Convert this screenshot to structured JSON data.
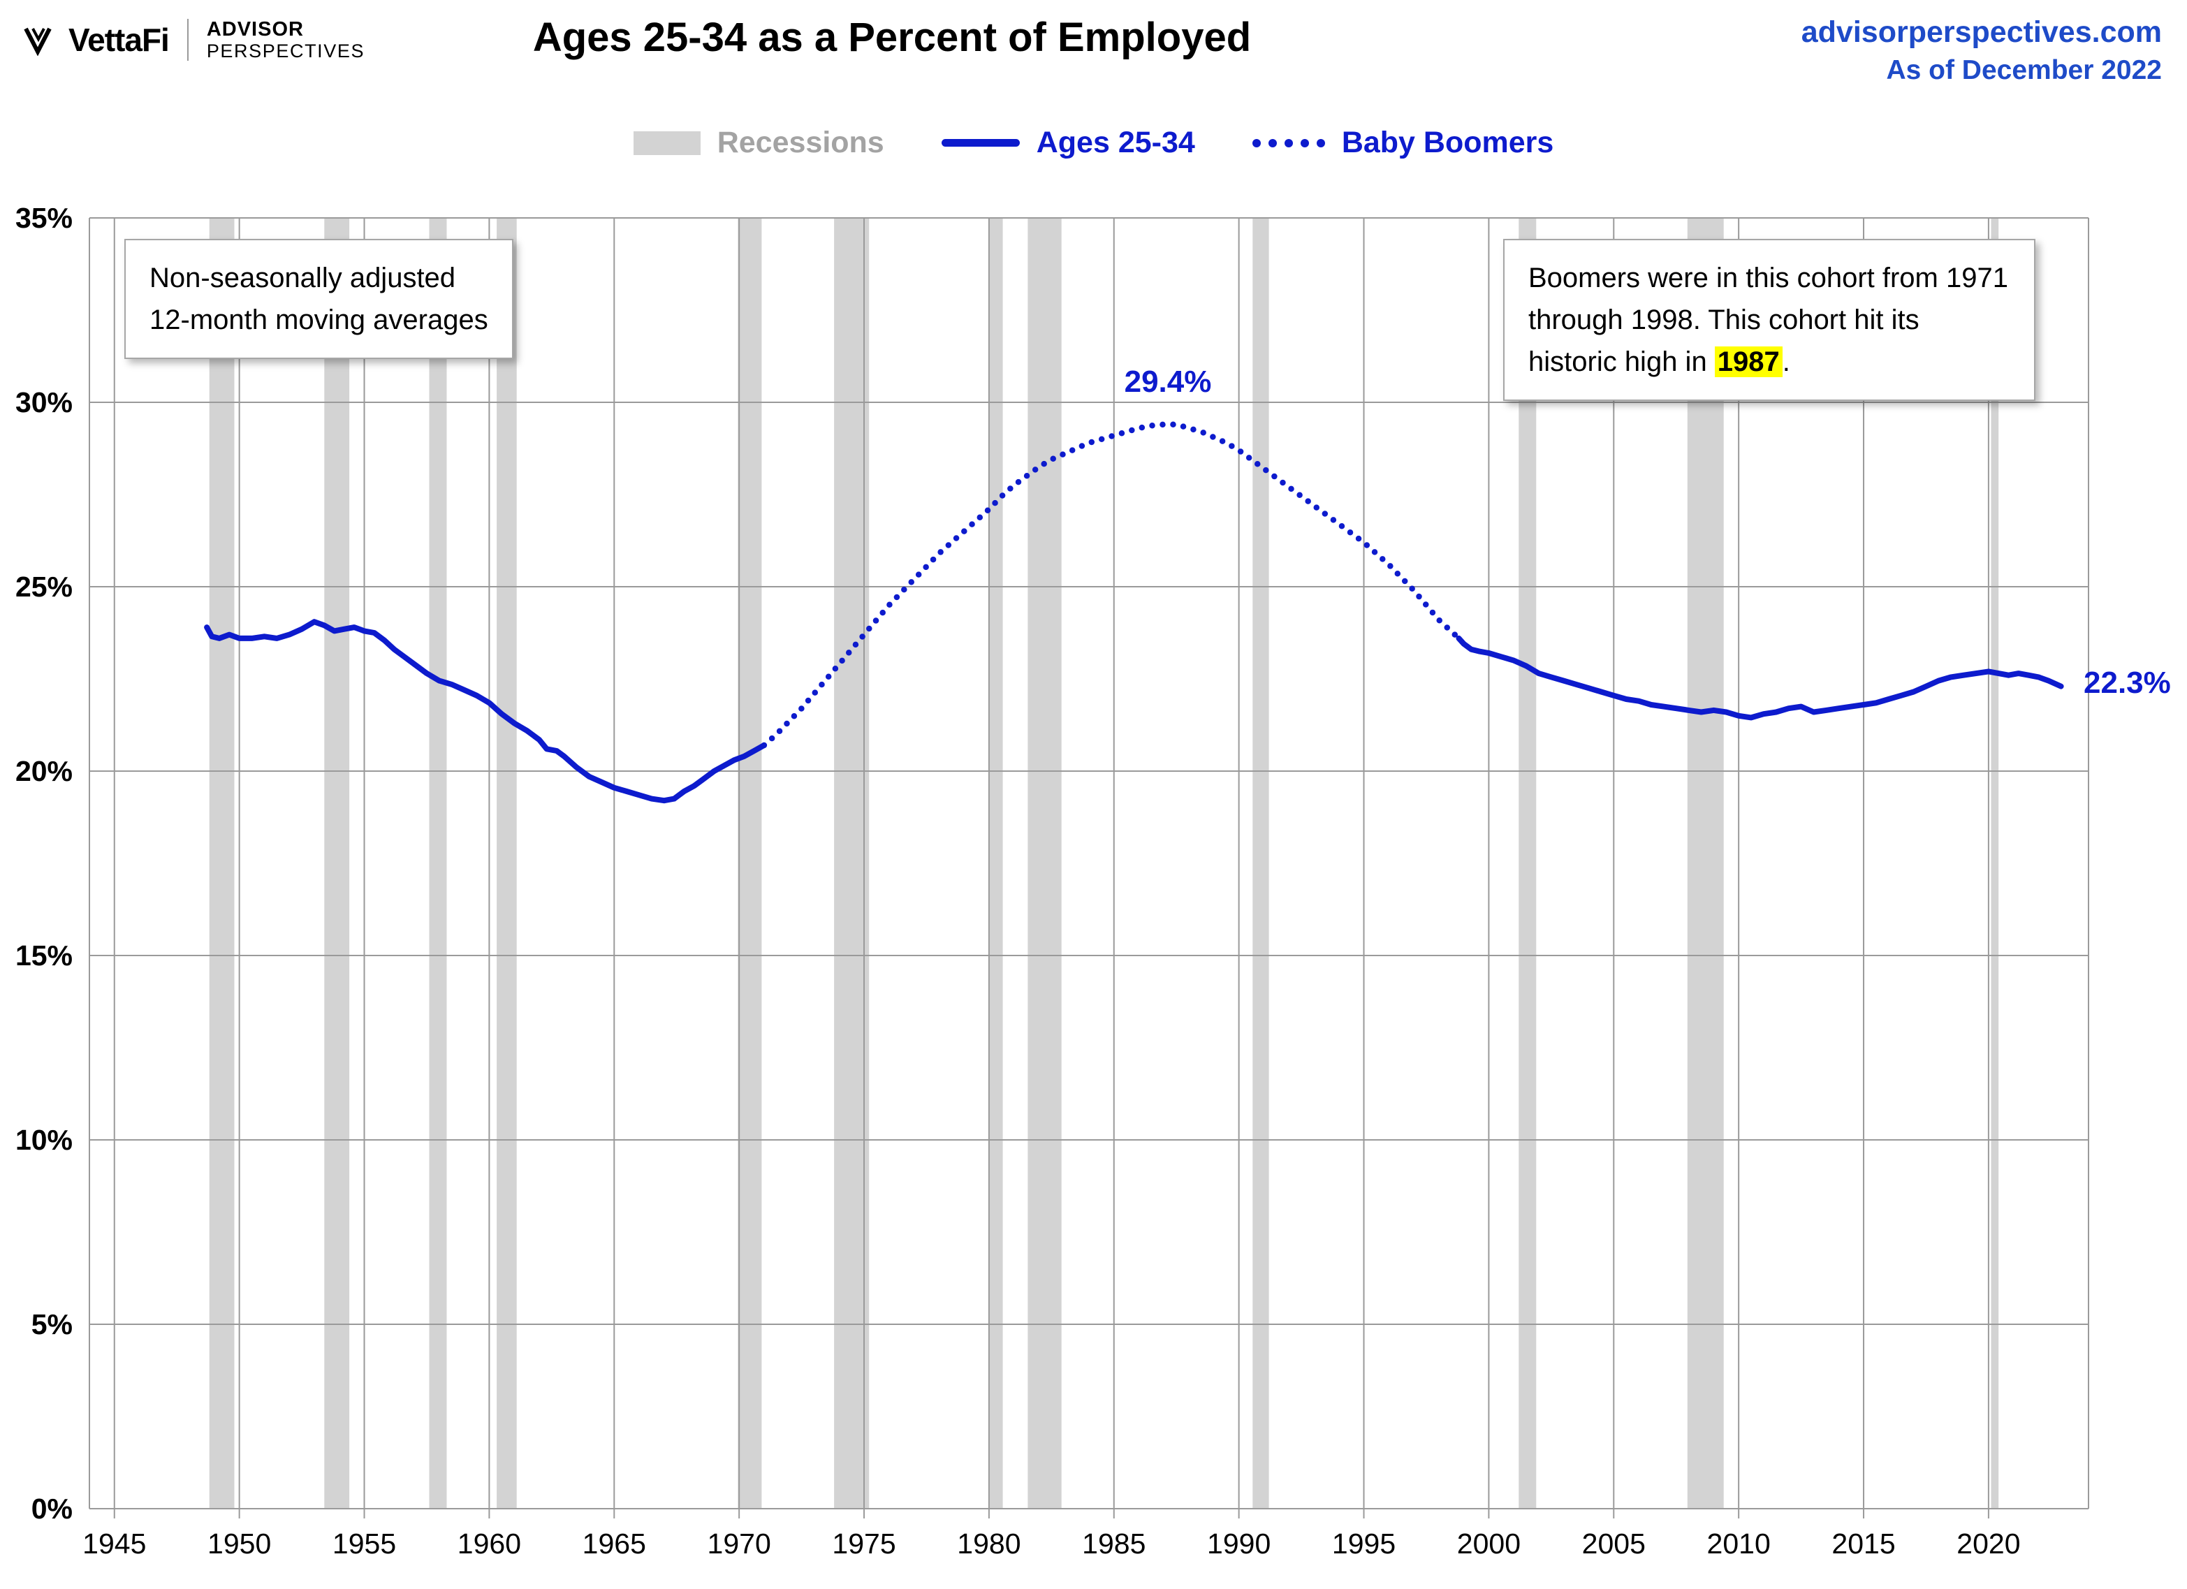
{
  "header": {
    "brand_name": "VettaFi",
    "brand_top": "ADVISOR",
    "brand_bottom": "PERSPECTIVES",
    "title": "Ages 25-34 as a Percent of Employed",
    "site": "advisorperspectives.com",
    "as_of": "As of December 2022"
  },
  "legend": {
    "recessions": "Recessions",
    "ages": "Ages 25-34",
    "boomers": "Baby Boomers"
  },
  "notes": {
    "left_line1": "Non-seasonally adjusted",
    "left_line2": "12-month moving averages",
    "right_before": "Boomers were in this cohort from 1971 through 1998. This cohort hit its historic high in ",
    "right_highlight": "1987",
    "right_after": "."
  },
  "annotations": {
    "peak_label": "29.4%",
    "latest_label": "22.3%"
  },
  "colors": {
    "line": "#0d1bcd",
    "header_blue": "#1e4bc8",
    "recession": "#d3d3d3",
    "grid": "#9a9a9a",
    "legend_gray": "#a3a3a3",
    "highlight": "#ffff00"
  },
  "chart_data": {
    "type": "line",
    "title": "Ages 25-34 as a Percent of Employed",
    "xlabel": "",
    "ylabel": "",
    "xlim": [
      1944,
      2024
    ],
    "ylim": [
      0,
      35
    ],
    "grid": true,
    "legend_position": "top",
    "x_ticks": [
      1945,
      1950,
      1955,
      1960,
      1965,
      1970,
      1975,
      1980,
      1985,
      1990,
      1995,
      2000,
      2005,
      2010,
      2015,
      2020
    ],
    "y_ticks": [
      {
        "v": 0,
        "label": "0%"
      },
      {
        "v": 5,
        "label": "5%"
      },
      {
        "v": 10,
        "label": "10%"
      },
      {
        "v": 15,
        "label": "15%"
      },
      {
        "v": 20,
        "label": "20%"
      },
      {
        "v": 25,
        "label": "25%"
      },
      {
        "v": 30,
        "label": "30%"
      },
      {
        "v": 35,
        "label": "35%"
      }
    ],
    "recessions": [
      [
        1948.8,
        1949.8
      ],
      [
        1953.4,
        1954.4
      ],
      [
        1957.6,
        1958.3
      ],
      [
        1960.3,
        1961.1
      ],
      [
        1969.95,
        1970.9
      ],
      [
        1973.8,
        1975.2
      ],
      [
        1980.0,
        1980.55
      ],
      [
        1981.55,
        1982.9
      ],
      [
        1990.55,
        1991.2
      ],
      [
        2001.2,
        2001.9
      ],
      [
        2007.95,
        2009.4
      ],
      [
        2020.1,
        2020.4
      ]
    ],
    "series": [
      {
        "name": "Ages 25-34",
        "style": "solid",
        "x": [
          1948.7,
          1948.9,
          1949.2,
          1949.6,
          1950,
          1950.5,
          1951,
          1951.5,
          1952,
          1952.5,
          1953,
          1953.4,
          1953.8,
          1954.2,
          1954.6,
          1955,
          1955.4,
          1955.8,
          1956.2,
          1956.6,
          1957,
          1957.5,
          1958,
          1958.5,
          1959,
          1959.5,
          1960,
          1960.5,
          1961,
          1961.5,
          1962,
          1962.3,
          1962.7,
          1963,
          1963.5,
          1964,
          1964.5,
          1965,
          1965.5,
          1966,
          1966.5,
          1967,
          1967.4,
          1967.8,
          1968.2,
          1968.6,
          1969,
          1969.4,
          1969.8,
          1970.2,
          1970.6,
          1971
        ],
        "y": [
          23.9,
          23.65,
          23.6,
          23.7,
          23.6,
          23.6,
          23.65,
          23.6,
          23.7,
          23.85,
          24.05,
          23.95,
          23.8,
          23.85,
          23.9,
          23.8,
          23.75,
          23.55,
          23.3,
          23.1,
          22.9,
          22.65,
          22.45,
          22.35,
          22.2,
          22.05,
          21.85,
          21.55,
          21.3,
          21.1,
          20.85,
          20.6,
          20.55,
          20.4,
          20.1,
          19.85,
          19.7,
          19.55,
          19.45,
          19.35,
          19.25,
          19.2,
          19.25,
          19.45,
          19.6,
          19.8,
          20,
          20.15,
          20.3,
          20.4,
          20.55,
          20.7
        ]
      },
      {
        "name": "Baby Boomers",
        "style": "dotted",
        "x": [
          1971,
          1971.5,
          1972,
          1972.5,
          1973,
          1973.5,
          1974,
          1974.5,
          1975,
          1975.5,
          1976,
          1976.5,
          1977,
          1977.5,
          1978,
          1978.5,
          1979,
          1979.5,
          1980,
          1980.5,
          1981,
          1981.5,
          1982,
          1982.5,
          1983,
          1983.5,
          1984,
          1984.5,
          1985,
          1985.5,
          1986,
          1986.5,
          1987,
          1987.5,
          1988,
          1988.5,
          1989,
          1989.5,
          1990,
          1990.5,
          1991,
          1991.5,
          1992,
          1992.5,
          1993,
          1993.5,
          1994,
          1994.5,
          1995,
          1995.5,
          1996,
          1996.5,
          1997,
          1997.5,
          1998,
          1998.4,
          1998.8
        ],
        "y": [
          20.7,
          21.0,
          21.35,
          21.7,
          22.1,
          22.5,
          22.9,
          23.3,
          23.7,
          24.1,
          24.5,
          24.85,
          25.2,
          25.55,
          25.9,
          26.2,
          26.5,
          26.8,
          27.1,
          27.45,
          27.75,
          28.0,
          28.25,
          28.45,
          28.6,
          28.75,
          28.9,
          29.0,
          29.1,
          29.2,
          29.3,
          29.37,
          29.4,
          29.4,
          29.3,
          29.2,
          29.05,
          28.9,
          28.7,
          28.45,
          28.2,
          27.95,
          27.7,
          27.45,
          27.2,
          26.95,
          26.7,
          26.45,
          26.2,
          25.9,
          25.6,
          25.25,
          24.9,
          24.5,
          24.1,
          23.85,
          23.6
        ]
      },
      {
        "name": "Ages 25-34",
        "style": "solid",
        "x": [
          1998.8,
          1999,
          1999.3,
          1999.6,
          2000,
          2000.5,
          2001,
          2001.5,
          2002,
          2002.5,
          2003,
          2003.5,
          2004,
          2004.5,
          2005,
          2005.5,
          2006,
          2006.5,
          2007,
          2007.5,
          2008,
          2008.5,
          2009,
          2009.5,
          2010,
          2010.5,
          2011,
          2011.5,
          2012,
          2012.5,
          2013,
          2013.5,
          2014,
          2014.5,
          2015,
          2015.5,
          2016,
          2016.5,
          2017,
          2017.5,
          2018,
          2018.5,
          2019,
          2019.5,
          2020,
          2020.4,
          2020.8,
          2021.2,
          2021.6,
          2022,
          2022.4,
          2022.9
        ],
        "y": [
          23.6,
          23.45,
          23.3,
          23.25,
          23.2,
          23.1,
          23.0,
          22.85,
          22.65,
          22.55,
          22.45,
          22.35,
          22.25,
          22.15,
          22.05,
          21.95,
          21.9,
          21.8,
          21.75,
          21.7,
          21.65,
          21.6,
          21.65,
          21.6,
          21.5,
          21.45,
          21.55,
          21.6,
          21.7,
          21.75,
          21.6,
          21.65,
          21.7,
          21.75,
          21.8,
          21.85,
          21.95,
          22.05,
          22.15,
          22.3,
          22.45,
          22.55,
          22.6,
          22.65,
          22.7,
          22.65,
          22.6,
          22.65,
          22.6,
          22.55,
          22.45,
          22.3
        ]
      }
    ],
    "annotations": [
      {
        "x": 1987,
        "y": 29.4,
        "text": "29.4%"
      },
      {
        "x": 2022.9,
        "y": 22.3,
        "text": "22.3%"
      }
    ]
  }
}
